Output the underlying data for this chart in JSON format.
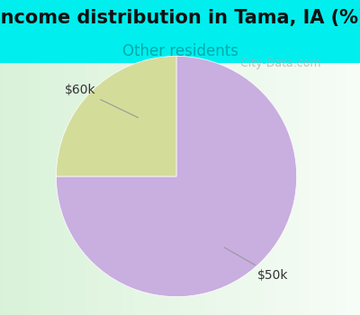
{
  "title": "Income distribution in Tama, IA (%)",
  "subtitle": "Other residents",
  "title_fontsize": 15,
  "subtitle_fontsize": 12,
  "title_color": "#111111",
  "subtitle_color": "#00aaaa",
  "header_bg_color": "#00eeee",
  "chart_bg_color": "#dff2df",
  "slices": [
    {
      "label": "$50k",
      "value": 75,
      "color": "#c9aee0"
    },
    {
      "label": "$60k",
      "value": 25,
      "color": "#d4dc9a"
    }
  ],
  "watermark": "City-Data.com",
  "start_angle": 90,
  "fig_width": 4.0,
  "fig_height": 3.5
}
